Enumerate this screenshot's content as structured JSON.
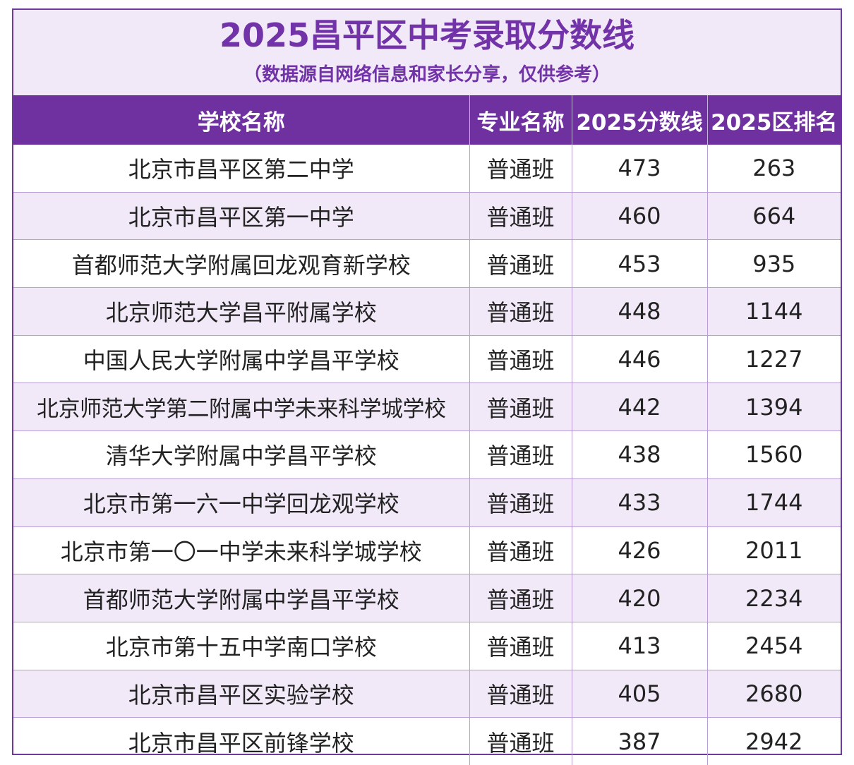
{
  "title": "2025昌平区中考录取分数线",
  "subtitle": "（数据源自网络信息和家长分享，仅供参考）",
  "headers": [
    "学校名称",
    "专业名称",
    "2025分数线",
    "2025区排名"
  ],
  "rows": [
    {
      "school": "北京市昌平区第二中学",
      "major": "普通班",
      "score": "473",
      "rank": "263"
    },
    {
      "school": "北京市昌平区第一中学",
      "major": "普通班",
      "score": "460",
      "rank": "664"
    },
    {
      "school": "首都师范大学附属回龙观育新学校",
      "major": "普通班",
      "score": "453",
      "rank": "935"
    },
    {
      "school": "北京师范大学昌平附属学校",
      "major": "普通班",
      "score": "448",
      "rank": "1144"
    },
    {
      "school": "中国人民大学附属中学昌平学校",
      "major": "普通班",
      "score": "446",
      "rank": "1227"
    },
    {
      "school": "北京师范大学第二附属中学未来科学城学校",
      "major": "普通班",
      "score": "442",
      "rank": "1394"
    },
    {
      "school": "清华大学附属中学昌平学校",
      "major": "普通班",
      "score": "438",
      "rank": "1560"
    },
    {
      "school": "北京市第一六一中学回龙观学校",
      "major": "普通班",
      "score": "433",
      "rank": "1744"
    },
    {
      "school": "北京市第一〇一中学未来科学城学校",
      "major": "普通班",
      "score": "426",
      "rank": "2011"
    },
    {
      "school": "首都师范大学附属中学昌平学校",
      "major": "普通班",
      "score": "420",
      "rank": "2234"
    },
    {
      "school": "北京市第十五中学南口学校",
      "major": "普通班",
      "score": "413",
      "rank": "2454"
    },
    {
      "school": "北京市昌平区实验学校",
      "major": "普通班",
      "score": "405",
      "rank": "2680"
    },
    {
      "school": "北京市昌平区前锋学校",
      "major": "普通班",
      "score": "387",
      "rank": "2942"
    }
  ]
}
